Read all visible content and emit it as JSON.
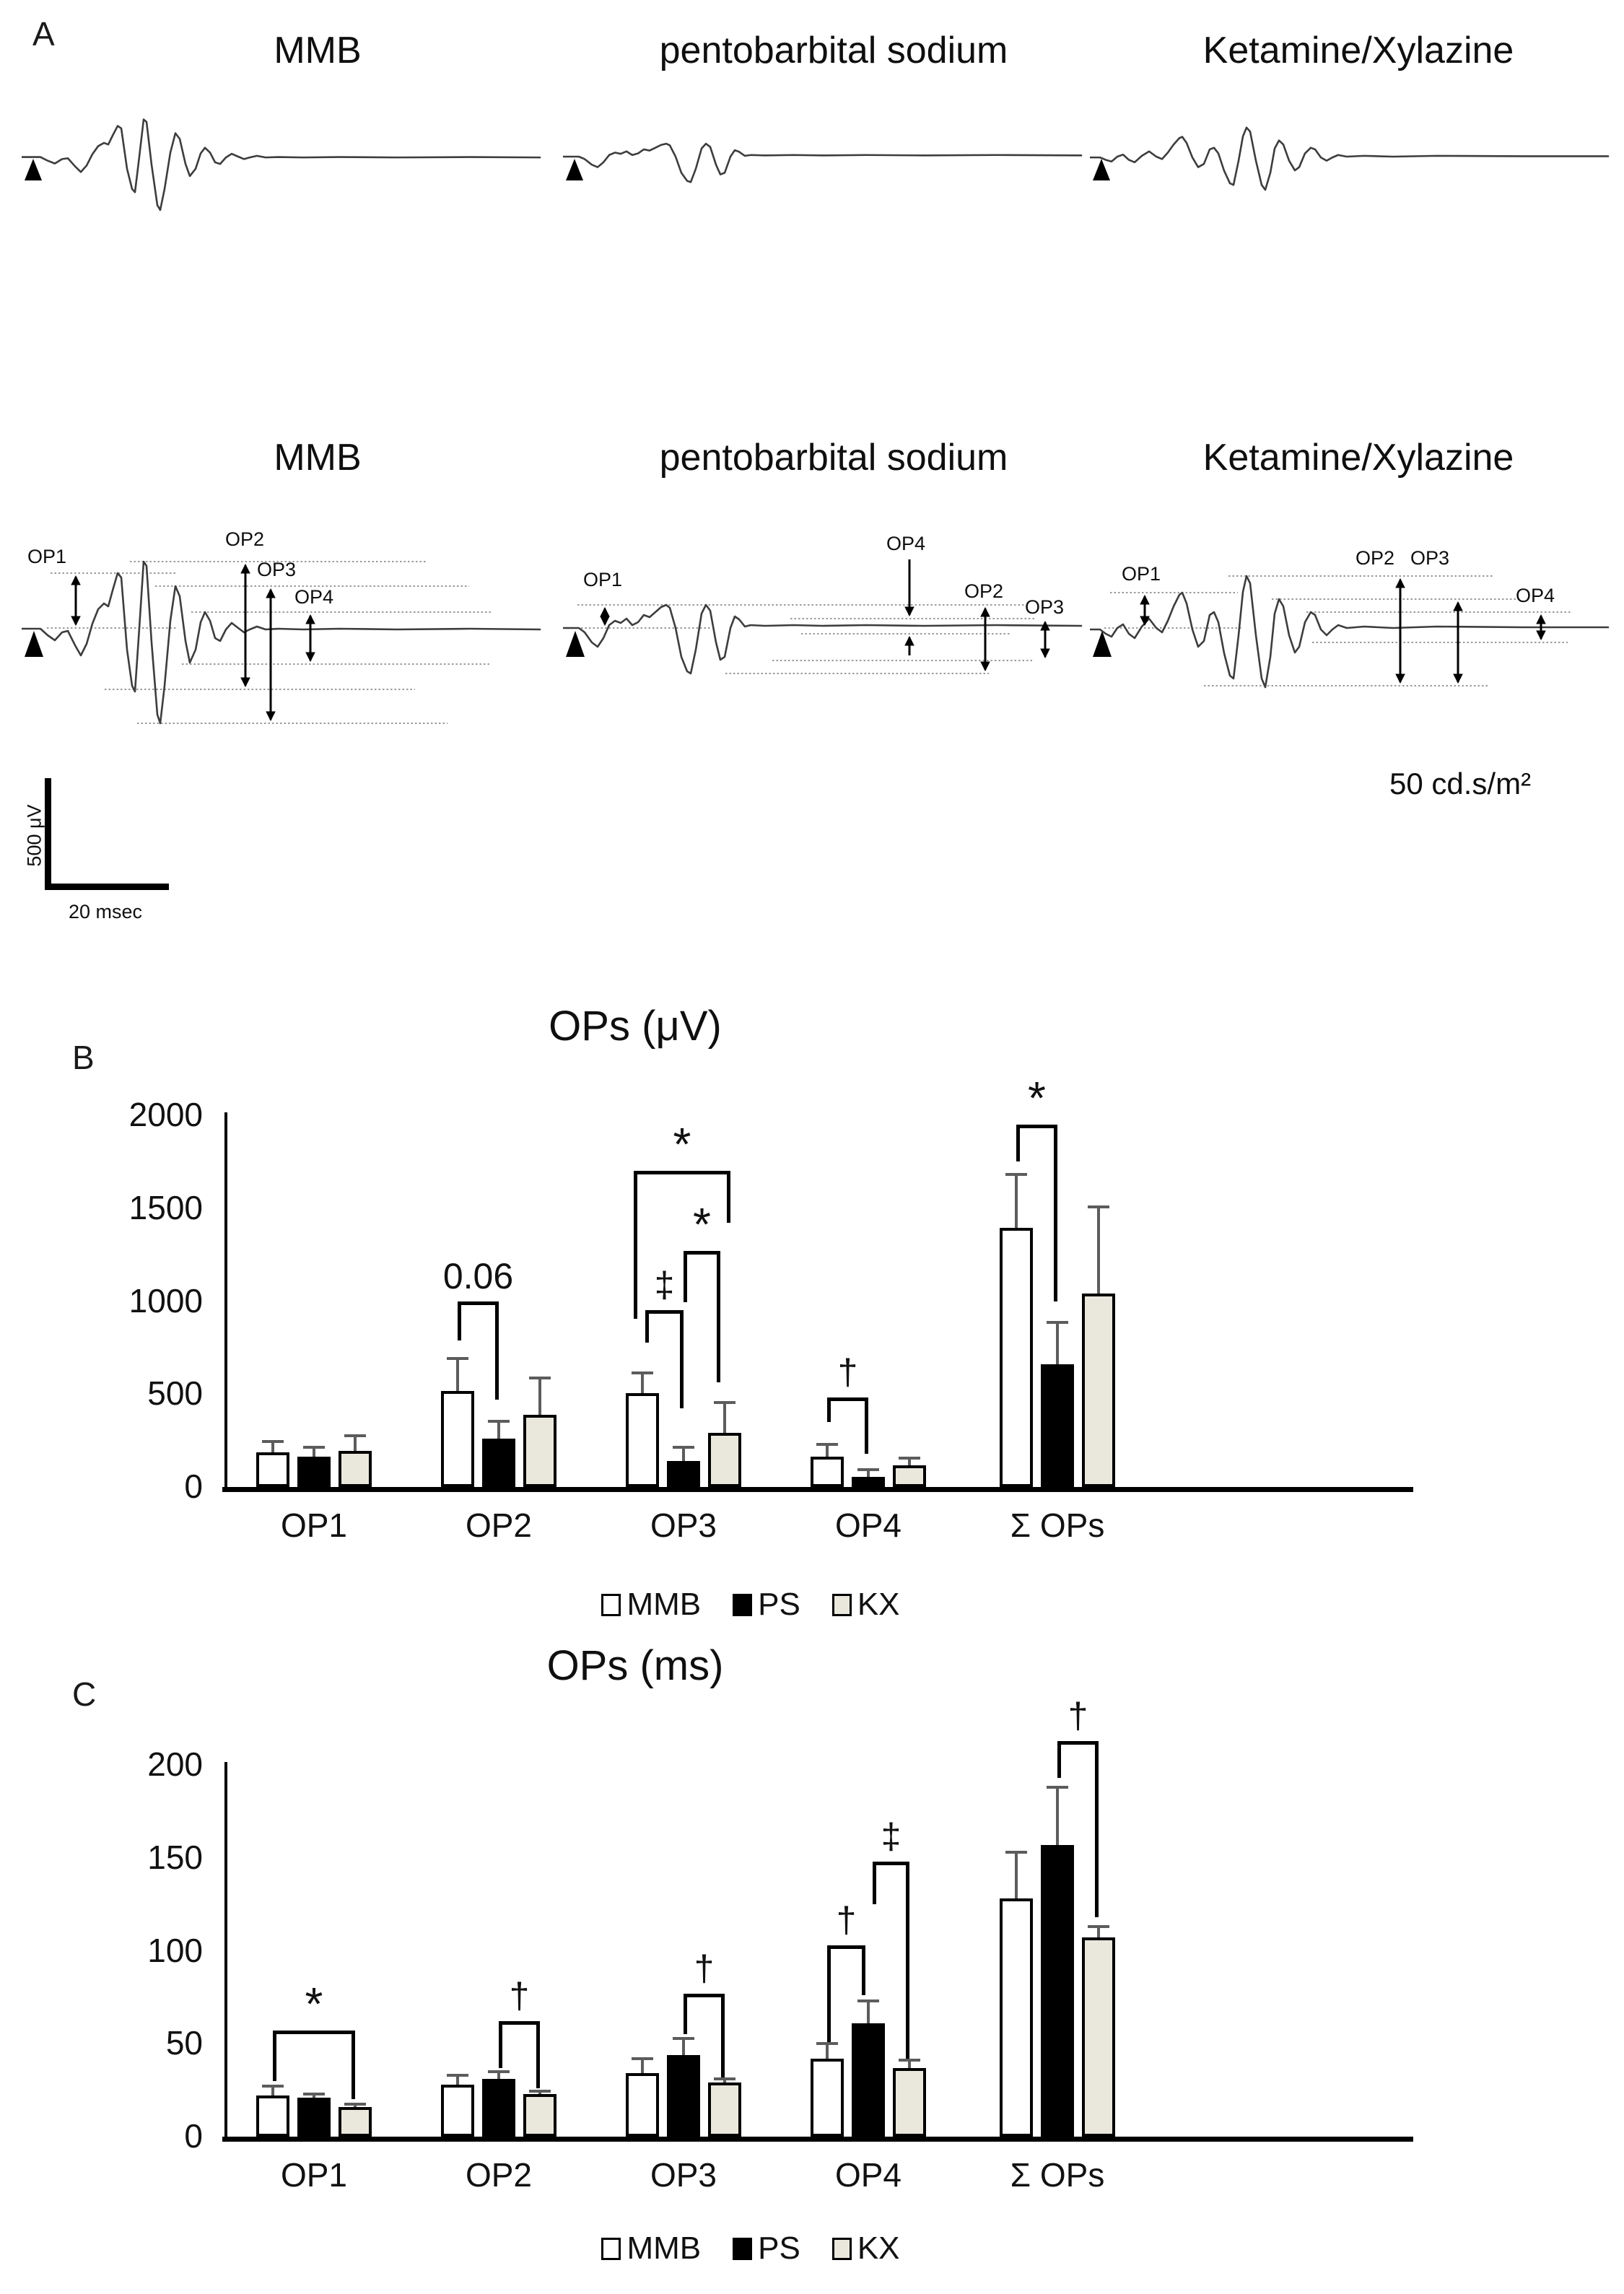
{
  "figure": {
    "panel_labels": {
      "a": "A",
      "b": "B",
      "c": "C"
    },
    "columns": [
      "MMB",
      "pentobarbital sodium",
      "Ketamine/Xylazine"
    ],
    "op_labels": [
      "OP1",
      "OP2",
      "OP3",
      "OP4"
    ],
    "scale_bar": {
      "vertical": "500 μV",
      "horizontal": "20 msec"
    },
    "stimulus_label": "50 cd.s/m²"
  },
  "chart_data": [
    {
      "type": "bar",
      "panel": "B",
      "title": "OPs (μV)",
      "categories": [
        "OP1",
        "OP2",
        "OP3",
        "OP4",
        "Σ OPs"
      ],
      "ylim": [
        0,
        2000
      ],
      "yticks": [
        0,
        500,
        1000,
        1500,
        2000
      ],
      "grid": false,
      "legend_position": "bottom",
      "legend": [
        "MMB",
        "PS",
        "KX"
      ],
      "series": [
        {
          "name": "MMB",
          "fill": "#ffffff",
          "values": [
            185,
            515,
            505,
            165,
            1395
          ],
          "error_tops": [
            245,
            690,
            615,
            230,
            1680
          ]
        },
        {
          "name": "PS",
          "fill": "#000000",
          "values": [
            165,
            260,
            140,
            55,
            660
          ],
          "error_tops": [
            215,
            355,
            215,
            95,
            885
          ]
        },
        {
          "name": "KX",
          "fill": "#eae7dc",
          "values": [
            195,
            390,
            290,
            115,
            1040
          ],
          "error_tops": [
            275,
            585,
            455,
            155,
            1505
          ]
        }
      ],
      "significance": [
        {
          "category": "OP2",
          "from": "MMB",
          "to": "PS",
          "label": "0.06",
          "bar_y": 1000,
          "left_end": 790,
          "right_end": 470
        },
        {
          "category": "OP3",
          "from": "MMB",
          "to": "PS",
          "label": "‡",
          "bar_y": 950,
          "left_end": 775,
          "right_end": 425,
          "dx1": 4
        },
        {
          "category": "OP3",
          "from": "PS",
          "to": "KX",
          "label": "*",
          "bar_y": 1270,
          "left_end": 995,
          "right_end": 565,
          "dx2": -6
        },
        {
          "category": "OP3",
          "from": "MMB",
          "to": "KX",
          "label": "*",
          "bar_y": 1700,
          "left_end": 905,
          "right_end": 1420,
          "dx1": -12,
          "dx2": 8
        },
        {
          "category": "OP4",
          "from": "MMB",
          "to": "PS",
          "label": "†",
          "bar_y": 480,
          "left_end": 350,
          "right_end": 180
        },
        {
          "category": "Σ OPs",
          "from": "MMB",
          "to": "PS",
          "label": "*",
          "bar_y": 1950,
          "left_end": 1750,
          "right_end": 1000
        }
      ]
    },
    {
      "type": "bar",
      "panel": "C",
      "title": "OPs (ms)",
      "categories": [
        "OP1",
        "OP2",
        "OP3",
        "OP4",
        "Σ OPs"
      ],
      "ylim": [
        0,
        200
      ],
      "yticks": [
        0,
        50,
        100,
        150,
        200
      ],
      "grid": false,
      "legend_position": "bottom",
      "legend": [
        "MMB",
        "PS",
        "KX"
      ],
      "series": [
        {
          "name": "MMB",
          "fill": "#ffffff",
          "values": [
            22,
            28,
            34,
            42,
            128
          ],
          "error_tops": [
            27,
            33,
            42,
            50,
            153
          ]
        },
        {
          "name": "PS",
          "fill": "#000000",
          "values": [
            21,
            31,
            44,
            61,
            157
          ],
          "error_tops": [
            23,
            35,
            53,
            73,
            188
          ]
        },
        {
          "name": "KX",
          "fill": "#eae7dc",
          "values": [
            16,
            23,
            29,
            37,
            107
          ],
          "error_tops": [
            17.5,
            24.5,
            31,
            41,
            113
          ]
        }
      ],
      "significance": [
        {
          "category": "OP1",
          "from": "MMB",
          "to": "KX",
          "label": "*",
          "bar_y": 57,
          "left_end": 30,
          "right_end": 20
        },
        {
          "category": "OP2",
          "from": "PS",
          "to": "KX",
          "label": "†",
          "bar_y": 62,
          "left_end": 37,
          "right_end": 26
        },
        {
          "category": "OP3",
          "from": "PS",
          "to": "KX",
          "label": "†",
          "bar_y": 77,
          "left_end": 55,
          "right_end": 32
        },
        {
          "category": "OP4",
          "from": "MMB",
          "to": "PS",
          "label": "†",
          "bar_y": 103,
          "left_end": 51,
          "right_end": 76,
          "dx2": -4
        },
        {
          "category": "OP4",
          "from": "PS",
          "to": "KX",
          "label": "‡",
          "bar_y": 148,
          "left_end": 125,
          "right_end": 42,
          "dx1": 6
        },
        {
          "category": "Σ OPs",
          "from": "PS",
          "to": "KX",
          "label": "†",
          "bar_y": 213,
          "left_end": 193,
          "right_end": 118
        }
      ]
    }
  ]
}
